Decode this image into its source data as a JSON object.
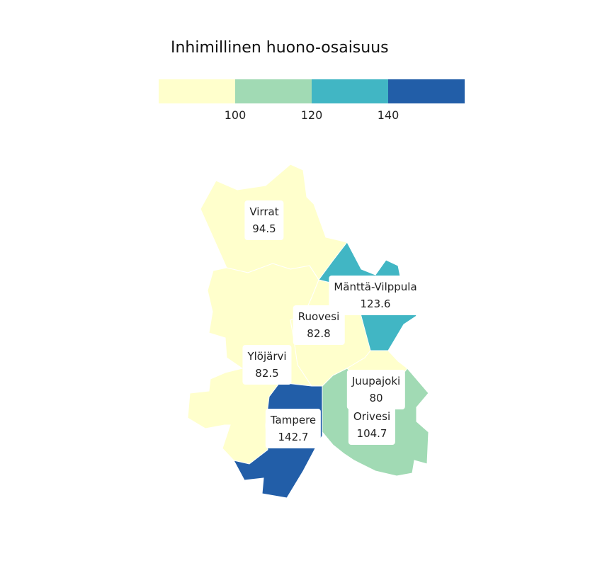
{
  "legend": {
    "title": "Inhimillinen huono-osaisuus",
    "colors": [
      "#ffffcc",
      "#a1dab4",
      "#41b6c4",
      "#225ea8"
    ],
    "ticks": [
      "100",
      "120",
      "140"
    ]
  },
  "regions": [
    {
      "name": "Virrat",
      "value": "94.5",
      "color": "#ffffcc"
    },
    {
      "name": "Mänttä-Vilppula",
      "value": "123.6",
      "color": "#41b6c4"
    },
    {
      "name": "Ruovesi",
      "value": "82.8",
      "color": "#ffffcc"
    },
    {
      "name": "Ylöjärvi",
      "value": "82.5",
      "color": "#ffffcc"
    },
    {
      "name": "Juupajoki",
      "value": "80",
      "color": "#ffffcc"
    },
    {
      "name": "Orivesi",
      "value": "104.7",
      "color": "#a1dab4"
    },
    {
      "name": "Tampere",
      "value": "142.7",
      "color": "#225ea8"
    }
  ]
}
